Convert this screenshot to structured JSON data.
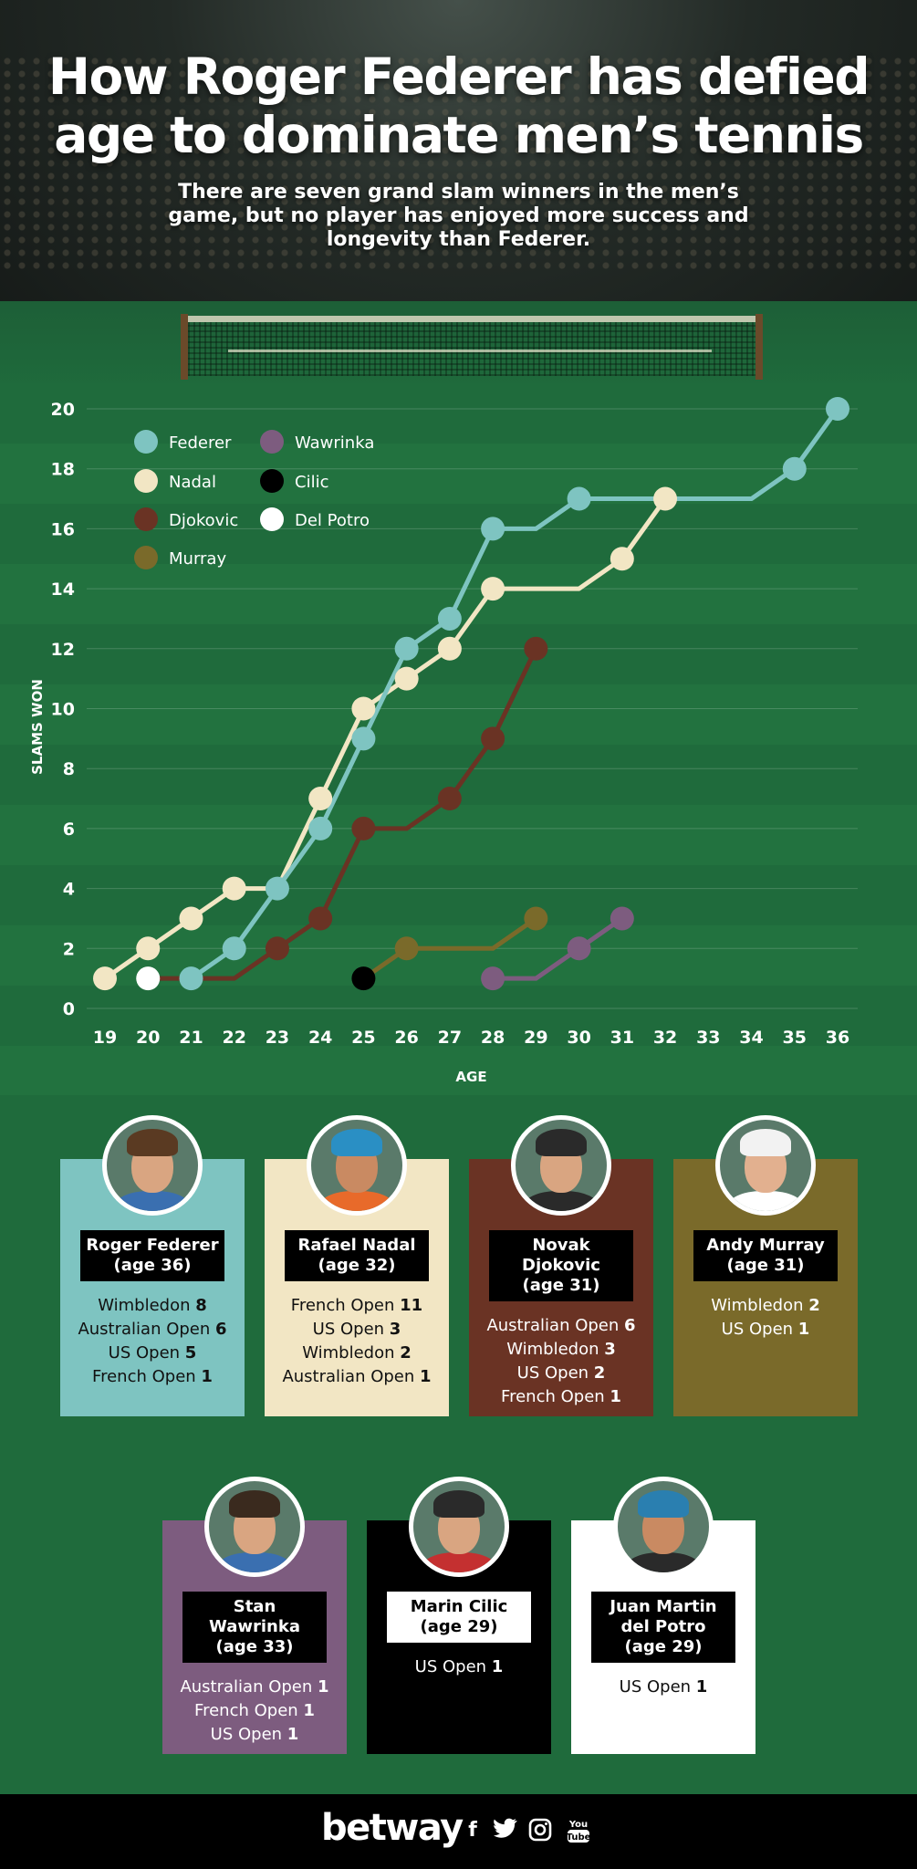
{
  "header": {
    "title": "How Roger Federer has defied age to dominate men’s tennis",
    "subtitle": "There are seven grand slam winners in the men’s game, but no player has enjoyed more success and longevity than Federer."
  },
  "chart_data": {
    "type": "line",
    "xlabel": "AGE",
    "ylabel": "SLAMS WON",
    "xlim": [
      19,
      36
    ],
    "ylim": [
      0,
      20
    ],
    "x_ticks": [
      19,
      20,
      21,
      22,
      23,
      24,
      25,
      26,
      27,
      28,
      29,
      30,
      31,
      32,
      33,
      34,
      35,
      36
    ],
    "y_ticks": [
      0,
      2,
      4,
      6,
      8,
      10,
      12,
      14,
      16,
      18,
      20
    ],
    "legend_position": "top-left",
    "series": [
      {
        "name": "Federer",
        "color": "#7ec4c1",
        "points": [
          [
            21,
            1
          ],
          [
            22,
            2
          ],
          [
            23,
            4
          ],
          [
            24,
            6
          ],
          [
            25,
            9
          ],
          [
            26,
            12
          ],
          [
            27,
            13
          ],
          [
            28,
            16
          ],
          [
            29,
            16
          ],
          [
            30,
            17
          ],
          [
            34,
            17
          ],
          [
            35,
            18
          ],
          [
            36,
            20
          ]
        ],
        "markers": [
          21,
          22,
          23,
          24,
          25,
          26,
          27,
          28,
          30,
          35,
          36
        ]
      },
      {
        "name": "Nadal",
        "color": "#f2e6c4",
        "points": [
          [
            19,
            1
          ],
          [
            20,
            2
          ],
          [
            21,
            3
          ],
          [
            22,
            4
          ],
          [
            23,
            4
          ],
          [
            24,
            7
          ],
          [
            25,
            10
          ],
          [
            26,
            11
          ],
          [
            27,
            12
          ],
          [
            28,
            14
          ],
          [
            30,
            14
          ],
          [
            31,
            15
          ],
          [
            32,
            17
          ]
        ],
        "markers": [
          19,
          20,
          21,
          22,
          24,
          25,
          26,
          27,
          28,
          31,
          32
        ]
      },
      {
        "name": "Djokovic",
        "color": "#6a3324",
        "points": [
          [
            20,
            1
          ],
          [
            22,
            1
          ],
          [
            23,
            2
          ],
          [
            24,
            3
          ],
          [
            25,
            6
          ],
          [
            26,
            6
          ],
          [
            27,
            7
          ],
          [
            28,
            9
          ],
          [
            29,
            12
          ]
        ],
        "markers": [
          23,
          24,
          25,
          27,
          28,
          29
        ]
      },
      {
        "name": "Murray",
        "color": "#7a6a2a",
        "points": [
          [
            25,
            1
          ],
          [
            26,
            2
          ],
          [
            28,
            2
          ],
          [
            29,
            3
          ]
        ],
        "markers": [
          26,
          29
        ]
      },
      {
        "name": "Wawrinka",
        "color": "#7d5c7f",
        "points": [
          [
            28,
            1
          ],
          [
            29,
            1
          ],
          [
            30,
            2
          ],
          [
            31,
            3
          ]
        ],
        "markers": [
          28,
          30,
          31
        ]
      },
      {
        "name": "Cilic",
        "color": "#000000",
        "points": [
          [
            25,
            1
          ]
        ],
        "markers": [
          25
        ]
      },
      {
        "name": "Del Potro",
        "color": "#ffffff",
        "points": [
          [
            20,
            1
          ]
        ],
        "markers": [
          20
        ]
      }
    ]
  },
  "cards": [
    {
      "name": "Roger Federer",
      "age": "(age 36)",
      "bg": "#7ec4c1",
      "text_color": "#111111",
      "skin": "#d9a581",
      "hair": "#5a3a22",
      "shirt": "#3a6fb0",
      "name_style": "dark",
      "stats": [
        {
          "t": "Wimbledon",
          "v": "8"
        },
        {
          "t": "Australian Open",
          "v": "6"
        },
        {
          "t": "US Open",
          "v": "5"
        },
        {
          "t": "French Open",
          "v": "1"
        }
      ]
    },
    {
      "name": "Rafael Nadal",
      "age": "(age 32)",
      "bg": "#f2e6c4",
      "text_color": "#111111",
      "skin": "#c98a62",
      "hair": "#2a8fc4",
      "shirt": "#e86a2a",
      "name_style": "dark",
      "stats": [
        {
          "t": "French Open",
          "v": "11"
        },
        {
          "t": "US Open",
          "v": "3"
        },
        {
          "t": "Wimbledon",
          "v": "2"
        },
        {
          "t": "Australian Open",
          "v": "1"
        }
      ]
    },
    {
      "name": "Novak Djokovic",
      "age": "(age 31)",
      "bg": "#6a3324",
      "text_color": "#ffffff",
      "skin": "#d9a581",
      "hair": "#2a2a2a",
      "shirt": "#2a2a2a",
      "name_style": "dark",
      "stats": [
        {
          "t": "Australian Open",
          "v": "6"
        },
        {
          "t": "Wimbledon",
          "v": "3"
        },
        {
          "t": "US Open",
          "v": "2"
        },
        {
          "t": "French Open",
          "v": "1"
        }
      ]
    },
    {
      "name": "Andy Murray",
      "age": "(age 31)",
      "bg": "#7a6a2a",
      "text_color": "#ffffff",
      "skin": "#e2b08f",
      "hair": "#f2f2f2",
      "shirt": "#ffffff",
      "name_style": "dark",
      "stats": [
        {
          "t": "Wimbledon",
          "v": "2"
        },
        {
          "t": "US Open",
          "v": "1"
        }
      ]
    },
    {
      "name": "Stan Wawrinka",
      "age": "(age 33)",
      "bg": "#7d5c7f",
      "text_color": "#ffffff",
      "skin": "#d9a581",
      "hair": "#3a2a1e",
      "shirt": "#3a6fb0",
      "name_style": "dark",
      "stats": [
        {
          "t": "Australian Open",
          "v": "1"
        },
        {
          "t": "French Open",
          "v": "1"
        },
        {
          "t": "US Open",
          "v": "1"
        }
      ]
    },
    {
      "name": "Marin Cilic",
      "age": "(age 29)",
      "bg": "#000000",
      "text_color": "#ffffff",
      "skin": "#d9a581",
      "hair": "#2a2a2a",
      "shirt": "#c43030",
      "name_style": "light",
      "stats": [
        {
          "t": "US Open",
          "v": "1"
        }
      ]
    },
    {
      "name": "Juan Martin del Potro",
      "age": "(age 29)",
      "bg": "#ffffff",
      "text_color": "#111111",
      "skin": "#c98a62",
      "hair": "#2a7fb0",
      "shirt": "#2a2a2a",
      "name_style": "dark",
      "stats": [
        {
          "t": "US Open",
          "v": "1"
        }
      ]
    }
  ],
  "footer": {
    "brand": "betway",
    "social_icons": [
      "facebook-icon",
      "twitter-icon",
      "instagram-icon",
      "youtube-icon"
    ],
    "social_glyphs": [
      "f",
      "•",
      "◎",
      "You"
    ]
  }
}
